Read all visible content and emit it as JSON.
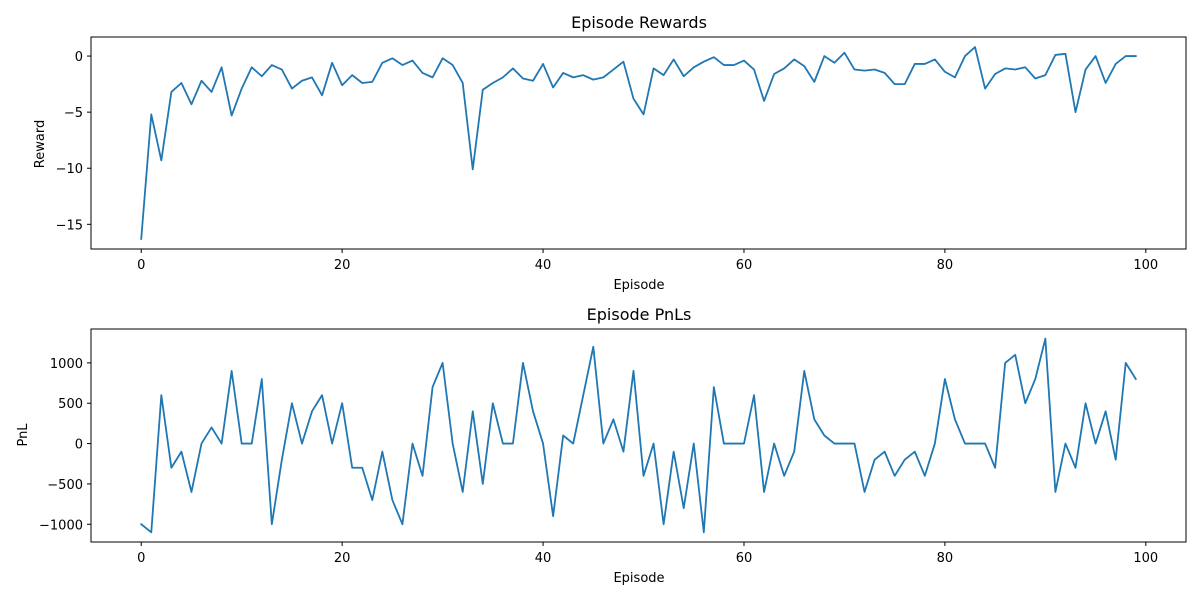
{
  "chart_data": [
    {
      "type": "line",
      "title": "Episode Rewards",
      "xlabel": "Episode",
      "ylabel": "Reward",
      "xlim": [
        -5,
        104
      ],
      "ylim": [
        -17.2,
        1.7
      ],
      "xticks": [
        0,
        20,
        40,
        60,
        80,
        100
      ],
      "yticks": [
        0,
        -5,
        -10,
        -15
      ],
      "grid": false,
      "color": "#1f77b4",
      "x": [
        0,
        1,
        2,
        3,
        4,
        5,
        6,
        7,
        8,
        9,
        10,
        11,
        12,
        13,
        14,
        15,
        16,
        17,
        18,
        19,
        20,
        21,
        22,
        23,
        24,
        25,
        26,
        27,
        28,
        29,
        30,
        31,
        32,
        33,
        34,
        35,
        36,
        37,
        38,
        39,
        40,
        41,
        42,
        43,
        44,
        45,
        46,
        47,
        48,
        49,
        50,
        51,
        52,
        53,
        54,
        55,
        56,
        57,
        58,
        59,
        60,
        61,
        62,
        63,
        64,
        65,
        66,
        67,
        68,
        69,
        70,
        71,
        72,
        73,
        74,
        75,
        76,
        77,
        78,
        79,
        80,
        81,
        82,
        83,
        84,
        85,
        86,
        87,
        88,
        89,
        90,
        91,
        92,
        93,
        94,
        95,
        96,
        97,
        98,
        99
      ],
      "y": [
        -16.3,
        -5.2,
        -9.3,
        -3.2,
        -2.4,
        -4.3,
        -2.2,
        -3.2,
        -1.0,
        -5.3,
        -2.9,
        -1.0,
        -1.8,
        -0.8,
        -1.2,
        -2.9,
        -2.2,
        -1.9,
        -3.5,
        -0.6,
        -2.6,
        -1.7,
        -2.4,
        -2.3,
        -0.6,
        -0.2,
        -0.8,
        -0.4,
        -1.5,
        -1.9,
        -0.2,
        -0.8,
        -2.4,
        -10.1,
        -3.0,
        -2.4,
        -1.9,
        -1.1,
        -2.0,
        -2.2,
        -0.7,
        -2.8,
        -1.5,
        -1.9,
        -1.7,
        -2.1,
        -1.9,
        -1.2,
        -0.5,
        -3.8,
        -5.2,
        -1.1,
        -1.7,
        -0.3,
        -1.8,
        -1.0,
        -0.5,
        -0.1,
        -0.8,
        -0.8,
        -0.4,
        -1.2,
        -4.0,
        -1.6,
        -1.1,
        -0.3,
        -0.9,
        -2.3,
        0.0,
        -0.6,
        0.3,
        -1.2,
        -1.3,
        -1.2,
        -1.5,
        -2.5,
        -2.5,
        -0.7,
        -0.7,
        -0.3,
        -1.4,
        -1.9,
        0.0,
        0.8,
        -2.9,
        -1.6,
        -1.1,
        -1.2,
        -1.0,
        -2.0,
        -1.7,
        0.1,
        0.2,
        -5.0,
        -1.2,
        0.0,
        -2.4,
        -0.7,
        0.0,
        0.0
      ]
    },
    {
      "type": "line",
      "title": "Episode PnLs",
      "xlabel": "Episode",
      "ylabel": "PnL",
      "xlim": [
        -5,
        104
      ],
      "ylim": [
        -1220,
        1420
      ],
      "xticks": [
        0,
        20,
        40,
        60,
        80,
        100
      ],
      "yticks": [
        1000,
        500,
        0,
        -500,
        -1000
      ],
      "grid": false,
      "color": "#1f77b4",
      "x": [
        0,
        1,
        2,
        3,
        4,
        5,
        6,
        7,
        8,
        9,
        10,
        11,
        12,
        13,
        14,
        15,
        16,
        17,
        18,
        19,
        20,
        21,
        22,
        23,
        24,
        25,
        26,
        27,
        28,
        29,
        30,
        31,
        32,
        33,
        34,
        35,
        36,
        37,
        38,
        39,
        40,
        41,
        42,
        43,
        44,
        45,
        46,
        47,
        48,
        49,
        50,
        51,
        52,
        53,
        54,
        55,
        56,
        57,
        58,
        59,
        60,
        61,
        62,
        63,
        64,
        65,
        66,
        67,
        68,
        69,
        70,
        71,
        72,
        73,
        74,
        75,
        76,
        77,
        78,
        79,
        80,
        81,
        82,
        83,
        84,
        85,
        86,
        87,
        88,
        89,
        90,
        91,
        92,
        93,
        94,
        95,
        96,
        97,
        98,
        99
      ],
      "y": [
        -1000,
        -1100,
        600,
        -300,
        -100,
        -600,
        0,
        200,
        0,
        900,
        0,
        0,
        800,
        -1000,
        -200,
        500,
        0,
        400,
        600,
        0,
        500,
        -300,
        -300,
        -700,
        -100,
        -700,
        -1000,
        0,
        -400,
        700,
        1000,
        0,
        -600,
        400,
        -500,
        500,
        0,
        0,
        1000,
        400,
        0,
        -900,
        100,
        0,
        600,
        1200,
        0,
        300,
        -100,
        900,
        -400,
        0,
        -1000,
        -100,
        -800,
        0,
        -1100,
        700,
        0,
        0,
        0,
        600,
        -600,
        0,
        -400,
        -100,
        900,
        300,
        100,
        0,
        0,
        0,
        -600,
        -200,
        -100,
        -400,
        -200,
        -100,
        -400,
        0,
        800,
        300,
        0,
        0,
        0,
        -300,
        1000,
        1100,
        500,
        800,
        1300,
        -600,
        0,
        -300,
        500,
        0,
        400,
        -200,
        1000,
        800
      ]
    }
  ]
}
